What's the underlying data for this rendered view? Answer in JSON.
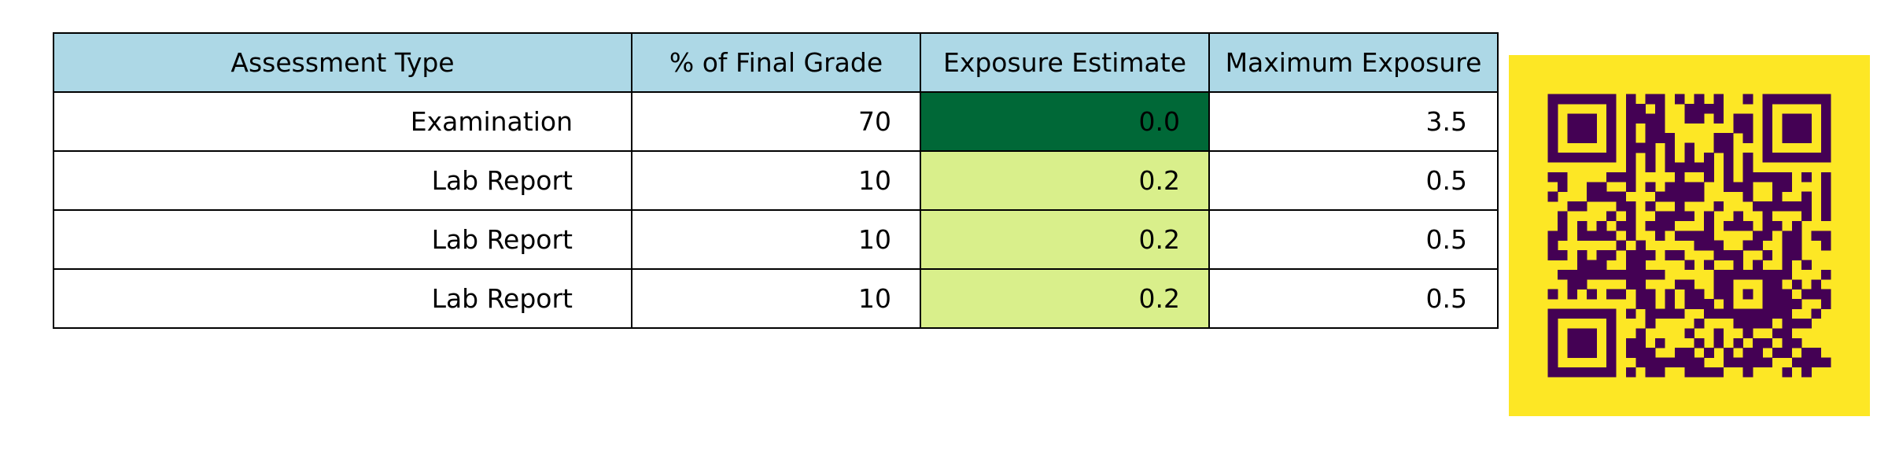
{
  "chart_data": {
    "type": "table",
    "columns": [
      "Assessment Type",
      "% of Final Grade",
      "Exposure Estimate",
      "Maximum Exposure"
    ],
    "rows": [
      {
        "assessment": "Examination",
        "percent": "70",
        "estimate": "0.0",
        "maximum": "3.5"
      },
      {
        "assessment": "Lab Report",
        "percent": "10",
        "estimate": "0.2",
        "maximum": "0.5"
      },
      {
        "assessment": "Lab Report",
        "percent": "10",
        "estimate": "0.2",
        "maximum": "0.5"
      },
      {
        "assessment": "Lab Report",
        "percent": "10",
        "estimate": "0.2",
        "maximum": "0.5"
      }
    ]
  },
  "colors": {
    "header_fill": "#add8e6",
    "row_fill": "#ffffff",
    "grid_line": "#000000",
    "text": "#000000",
    "estimate_fills": [
      "#006837",
      "#d9ef8b",
      "#d9ef8b",
      "#d9ef8b"
    ],
    "qr_background": "#fde725",
    "qr_modules": "#440154"
  },
  "qr_code": {
    "description_icon": "qr-code-icon"
  }
}
